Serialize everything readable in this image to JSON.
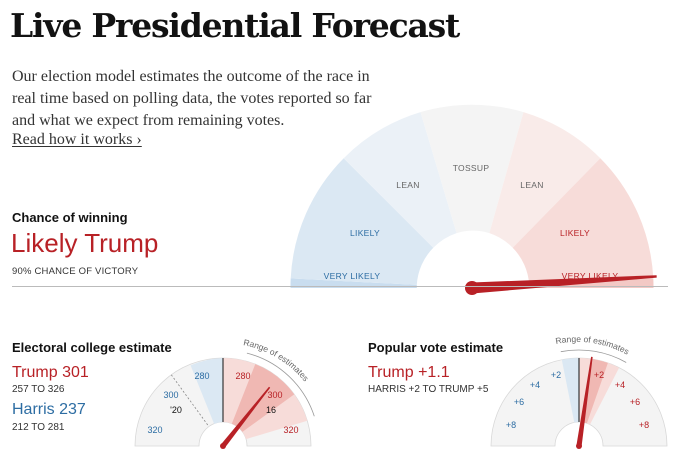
{
  "header": {
    "title": "Live Presidential Forecast",
    "intro": "Our election model estimates the outcome of the race in real time based on polling data, the votes reported so far and what we expect from remaining votes.",
    "read_link": "Read how it works ›"
  },
  "chance": {
    "heading": "Chance of winning",
    "value": "Likely Trump",
    "subtext": "90% CHANCE OF VICTORY",
    "probability_trump": 0.9,
    "gauge_labels": {
      "very_likely_dem": "VERY LIKELY",
      "likely_dem": "LIKELY",
      "lean_dem": "LEAN",
      "tossup": "TOSSUP",
      "lean_rep": "LEAN",
      "likely_rep": "LIKELY",
      "very_likely_rep": "VERY LIKELY"
    }
  },
  "electoral": {
    "heading": "Electoral college estimate",
    "trump_label": "Trump 301",
    "trump_range": "257 TO 326",
    "harris_label": "Harris 237",
    "harris_range": "212 TO 281",
    "trump_estimate": 301,
    "range_low": 257,
    "range_high": 326,
    "arc_label": "Range of estimates",
    "prev_marker_label": "'20",
    "prev_marker_value": 306,
    "tick_16": "16",
    "ticks": [
      "320",
      "300",
      "280",
      "280",
      "300",
      "320"
    ]
  },
  "popular": {
    "heading": "Popular vote estimate",
    "leader_label": "Trump +1.1",
    "range_text": "HARRIS +2 TO TRUMP +5",
    "margin": 1.1,
    "range_low": -2,
    "range_high": 5,
    "arc_label": "Range of estimates",
    "ticks": [
      "+8",
      "+6",
      "+4",
      "+2",
      "+2",
      "+4",
      "+6",
      "+8"
    ]
  },
  "colors": {
    "rep": "#b82126",
    "dem": "#2d6da3",
    "rep_light": "#f9e2e0",
    "dem_light": "#dde9f3"
  }
}
